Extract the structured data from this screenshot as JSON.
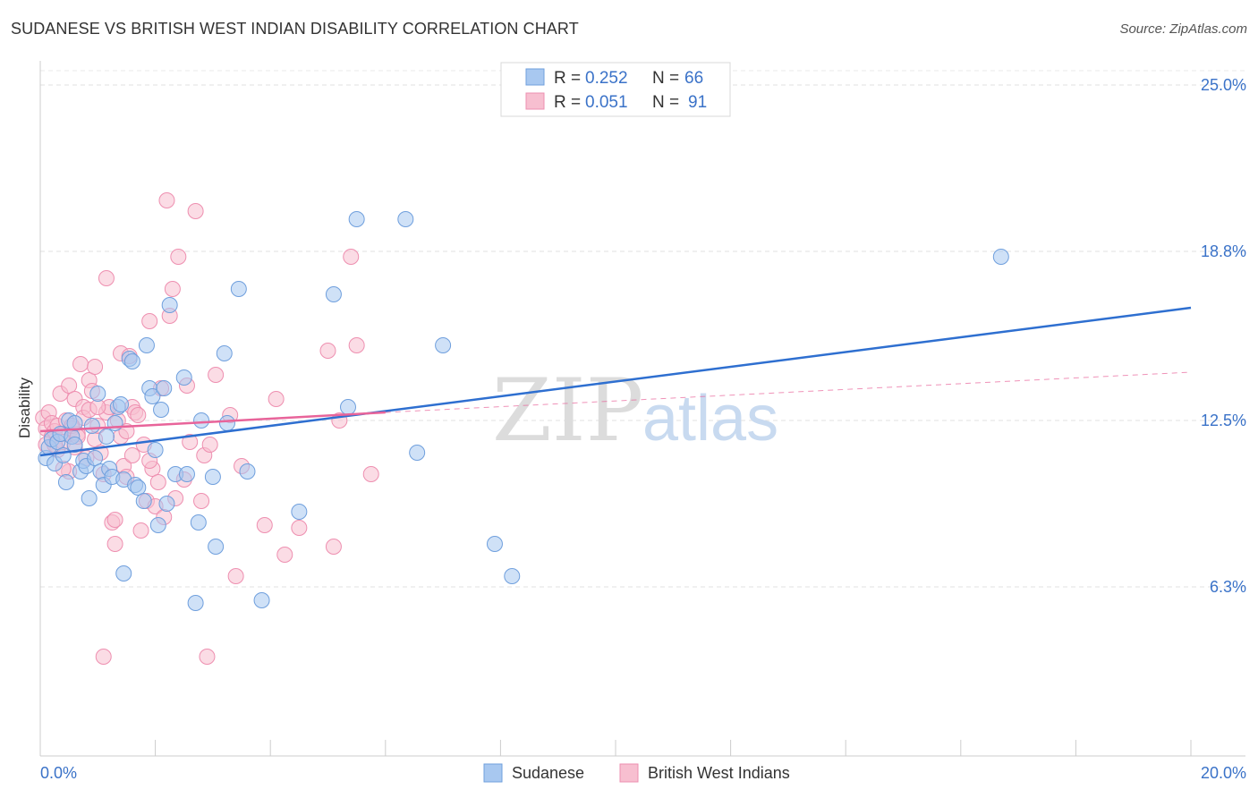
{
  "title": "SUDANESE VS BRITISH WEST INDIAN DISABILITY CORRELATION CHART",
  "source": "Source: ZipAtlas.com",
  "watermark": {
    "zip": "ZIP",
    "atlas": "atlas"
  },
  "legend": {
    "rows": [
      {
        "r_label": "R =",
        "r_value": "0.252",
        "n_label": "N =",
        "n_value": "66"
      },
      {
        "r_label": "R =",
        "r_value": "0.051",
        "n_label": "N =",
        "n_value": "91"
      }
    ]
  },
  "colors": {
    "sudanese_fill": "#a8c8f0",
    "sudanese_stroke": "#6f9fdd",
    "sudanese_line": "#2e6fd0",
    "bwi_fill": "#f7bfd0",
    "bwi_stroke": "#ee8fb0",
    "bwi_line": "#e8649a",
    "axis_text": "#3a72c8"
  },
  "chart_data": {
    "type": "scatter",
    "title": "SUDANESE VS BRITISH WEST INDIAN DISABILITY CORRELATION CHART",
    "xlabel": "",
    "ylabel": "Disability",
    "xlim": [
      0,
      20
    ],
    "ylim": [
      0,
      25.8
    ],
    "x_tick_labels": [
      "0.0%",
      "20.0%"
    ],
    "y_ticks": [
      6.3,
      12.5,
      18.8,
      25.0
    ],
    "y_tick_labels": [
      "6.3%",
      "12.5%",
      "18.8%",
      "25.0%"
    ],
    "grid": "horizontal dashed",
    "series": [
      {
        "name": "Sudanese",
        "R": 0.252,
        "N": 66,
        "trend": {
          "x": [
            0,
            20
          ],
          "y": [
            11.2,
            16.7
          ],
          "style": "solid"
        },
        "points": [
          [
            0.1,
            11.1
          ],
          [
            0.15,
            11.5
          ],
          [
            0.2,
            11.8
          ],
          [
            0.25,
            10.9
          ],
          [
            0.3,
            11.7
          ],
          [
            0.35,
            12.0
          ],
          [
            0.45,
            10.2
          ],
          [
            0.5,
            12.5
          ],
          [
            0.55,
            11.9
          ],
          [
            0.6,
            12.4
          ],
          [
            0.7,
            10.6
          ],
          [
            0.75,
            11.0
          ],
          [
            0.8,
            10.8
          ],
          [
            0.85,
            9.6
          ],
          [
            0.9,
            12.3
          ],
          [
            0.95,
            11.1
          ],
          [
            1.0,
            13.5
          ],
          [
            1.05,
            10.6
          ],
          [
            1.1,
            10.1
          ],
          [
            1.15,
            11.9
          ],
          [
            1.2,
            10.7
          ],
          [
            1.25,
            10.4
          ],
          [
            1.3,
            12.4
          ],
          [
            1.35,
            13.0
          ],
          [
            1.45,
            6.8
          ],
          [
            1.45,
            10.3
          ],
          [
            1.55,
            14.8
          ],
          [
            1.6,
            14.7
          ],
          [
            1.65,
            10.1
          ],
          [
            1.7,
            10.0
          ],
          [
            1.8,
            9.5
          ],
          [
            1.85,
            15.3
          ],
          [
            1.9,
            13.7
          ],
          [
            1.95,
            13.4
          ],
          [
            2.0,
            11.4
          ],
          [
            2.05,
            8.6
          ],
          [
            2.1,
            12.9
          ],
          [
            2.15,
            13.7
          ],
          [
            2.25,
            16.8
          ],
          [
            2.35,
            10.5
          ],
          [
            2.5,
            14.1
          ],
          [
            2.55,
            10.5
          ],
          [
            2.7,
            5.7
          ],
          [
            2.75,
            8.7
          ],
          [
            2.8,
            12.5
          ],
          [
            3.0,
            10.4
          ],
          [
            3.05,
            7.8
          ],
          [
            3.2,
            15.0
          ],
          [
            3.25,
            12.4
          ],
          [
            3.45,
            17.4
          ],
          [
            3.6,
            10.6
          ],
          [
            3.85,
            5.8
          ],
          [
            4.5,
            9.1
          ],
          [
            5.1,
            17.2
          ],
          [
            5.35,
            13.0
          ],
          [
            5.5,
            20.0
          ],
          [
            6.35,
            20.0
          ],
          [
            6.55,
            11.3
          ],
          [
            7.0,
            15.3
          ],
          [
            7.9,
            7.9
          ],
          [
            8.2,
            6.7
          ],
          [
            16.7,
            18.6
          ],
          [
            0.6,
            11.6
          ],
          [
            1.4,
            13.1
          ],
          [
            2.2,
            9.4
          ],
          [
            0.4,
            11.2
          ]
        ]
      },
      {
        "name": "British West Indians",
        "R": 0.051,
        "N": 91,
        "trend": {
          "x": [
            0,
            6
          ],
          "y": [
            12.1,
            12.8
          ],
          "style": "solid",
          "extended_to": [
            20,
            14.3
          ],
          "extended_style": "dashed"
        },
        "points": [
          [
            0.05,
            12.6
          ],
          [
            0.1,
            12.2
          ],
          [
            0.1,
            11.6
          ],
          [
            0.15,
            12.8
          ],
          [
            0.2,
            12.4
          ],
          [
            0.2,
            11.9
          ],
          [
            0.25,
            12.1
          ],
          [
            0.3,
            12.3
          ],
          [
            0.3,
            11.4
          ],
          [
            0.35,
            13.5
          ],
          [
            0.4,
            12.0
          ],
          [
            0.4,
            11.7
          ],
          [
            0.45,
            12.5
          ],
          [
            0.5,
            13.8
          ],
          [
            0.5,
            10.6
          ],
          [
            0.55,
            12.2
          ],
          [
            0.6,
            13.3
          ],
          [
            0.6,
            11.5
          ],
          [
            0.65,
            12.0
          ],
          [
            0.7,
            14.6
          ],
          [
            0.75,
            13.0
          ],
          [
            0.75,
            12.6
          ],
          [
            0.8,
            11.1
          ],
          [
            0.85,
            14.0
          ],
          [
            0.85,
            12.9
          ],
          [
            0.9,
            13.6
          ],
          [
            0.95,
            14.5
          ],
          [
            0.95,
            11.8
          ],
          [
            1.0,
            12.3
          ],
          [
            1.05,
            11.3
          ],
          [
            1.1,
            10.5
          ],
          [
            1.15,
            12.8
          ],
          [
            1.15,
            17.8
          ],
          [
            1.2,
            13.0
          ],
          [
            1.25,
            8.7
          ],
          [
            1.3,
            8.8
          ],
          [
            1.3,
            7.9
          ],
          [
            1.35,
            12.5
          ],
          [
            1.4,
            15.0
          ],
          [
            1.4,
            11.9
          ],
          [
            1.45,
            10.8
          ],
          [
            1.5,
            10.4
          ],
          [
            1.55,
            14.9
          ],
          [
            1.6,
            13.0
          ],
          [
            1.6,
            11.2
          ],
          [
            1.65,
            12.8
          ],
          [
            1.7,
            12.7
          ],
          [
            1.75,
            8.4
          ],
          [
            1.8,
            11.6
          ],
          [
            1.85,
            9.5
          ],
          [
            1.9,
            16.2
          ],
          [
            1.95,
            10.7
          ],
          [
            2.0,
            9.3
          ],
          [
            2.05,
            10.2
          ],
          [
            2.1,
            13.7
          ],
          [
            2.15,
            8.9
          ],
          [
            2.2,
            20.7
          ],
          [
            2.25,
            16.4
          ],
          [
            2.3,
            17.4
          ],
          [
            2.35,
            9.6
          ],
          [
            2.4,
            18.6
          ],
          [
            2.5,
            10.3
          ],
          [
            2.55,
            13.8
          ],
          [
            2.7,
            20.3
          ],
          [
            2.8,
            9.5
          ],
          [
            2.85,
            11.2
          ],
          [
            2.9,
            3.7
          ],
          [
            2.95,
            11.6
          ],
          [
            3.05,
            14.2
          ],
          [
            3.3,
            12.7
          ],
          [
            3.4,
            6.7
          ],
          [
            3.5,
            10.8
          ],
          [
            3.9,
            8.6
          ],
          [
            4.1,
            13.3
          ],
          [
            4.25,
            7.5
          ],
          [
            4.5,
            8.5
          ],
          [
            5.0,
            15.1
          ],
          [
            5.1,
            7.8
          ],
          [
            5.2,
            12.5
          ],
          [
            5.4,
            18.6
          ],
          [
            5.5,
            15.3
          ],
          [
            5.75,
            10.5
          ],
          [
            1.1,
            3.7
          ],
          [
            0.55,
            12.3
          ],
          [
            1.0,
            13.0
          ],
          [
            0.25,
            11.6
          ],
          [
            0.65,
            11.9
          ],
          [
            1.9,
            11.0
          ],
          [
            1.5,
            12.1
          ],
          [
            2.6,
            11.7
          ],
          [
            0.4,
            10.7
          ]
        ]
      }
    ]
  },
  "bottom_legend": [
    "Sudanese",
    "British West Indians"
  ]
}
